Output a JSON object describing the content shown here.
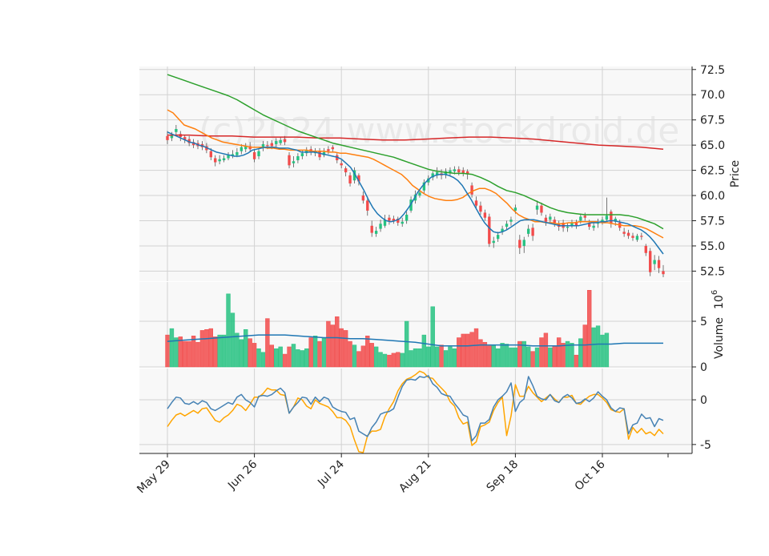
{
  "watermark": "(c)2024 www.stockdroid.de",
  "chart_data": {
    "type": "candlestick-with-volume-and-oscillator",
    "ylabel_price": "Price",
    "ylabel_volume": "Volume",
    "volume_exponent": "10",
    "volume_exponent_power": "6",
    "price_ylim": [
      51.5,
      72.8
    ],
    "price_ticks": [
      "52.5",
      "55.0",
      "57.5",
      "60.0",
      "62.5",
      "65.0",
      "67.5",
      "70.0",
      "72.5"
    ],
    "volume_ylim": [
      0,
      9.3
    ],
    "volume_ticks": [
      "0",
      "5"
    ],
    "osc_ylim": [
      -6.0,
      3.5
    ],
    "osc_ticks": [
      "0",
      "-5"
    ],
    "x_labels": [
      "May 29",
      "Jun 26",
      "Jul 24",
      "Aug 21",
      "Sep 18",
      "Oct 16"
    ],
    "x_label_index": [
      0,
      20,
      40,
      60,
      80,
      100
    ],
    "colors": {
      "up": "#26c281",
      "down": "#f24b4b",
      "ma_blue": "#1f77b4",
      "ma_orange": "#ff7f0e",
      "ma_green": "#2ca02c",
      "ma_red": "#d62728",
      "vol_ma": "#1f77b4",
      "osc_blue": "#4682b4",
      "osc_orange": "#ffa500"
    },
    "close": [
      65.5,
      66.0,
      66.6,
      65.8,
      65.5,
      65.2,
      65.0,
      64.9,
      64.8,
      64.5,
      63.8,
      63.3,
      63.6,
      63.7,
      64.0,
      64.1,
      64.3,
      64.8,
      64.9,
      64.6,
      63.6,
      64.4,
      65.1,
      64.9,
      64.9,
      65.4,
      65.5,
      65.3,
      63.0,
      63.4,
      63.9,
      64.2,
      64.5,
      64.3,
      64.4,
      63.8,
      64.3,
      64.4,
      64.6,
      63.5,
      63.0,
      62.3,
      61.2,
      62.5,
      61.4,
      59.5,
      58.5,
      56.3,
      56.5,
      57.2,
      57.6,
      57.5,
      57.5,
      57.3,
      57.4,
      58.1,
      59.6,
      60.1,
      60.3,
      61.3,
      61.7,
      62.2,
      62.3,
      62.0,
      62.4,
      62.5,
      62.6,
      62.3,
      62.2,
      62.1,
      60.1,
      59.0,
      58.4,
      57.8,
      55.2,
      55.5,
      56.1,
      56.7,
      57.2,
      57.6,
      58.8,
      54.8,
      55.6,
      56.7,
      56.0,
      59.0,
      58.3,
      57.4,
      57.9,
      57.3,
      56.9,
      56.8,
      56.9,
      57.3,
      57.0,
      57.9,
      57.8,
      56.9,
      57.0,
      57.4,
      57.6,
      58.0,
      57.2,
      57.7,
      56.8,
      56.2,
      56.0,
      55.8,
      56.0,
      55.9,
      54.3,
      52.4,
      53.6,
      52.8,
      52.2
    ],
    "open": [
      65.9,
      65.7,
      66.3,
      66.1,
      65.8,
      65.6,
      65.3,
      65.2,
      65.1,
      64.9,
      64.4,
      63.7,
      63.4,
      63.5,
      63.7,
      63.9,
      64.0,
      64.4,
      64.6,
      64.9,
      64.3,
      63.9,
      64.7,
      65.0,
      65.2,
      65.1,
      65.2,
      65.6,
      64.0,
      63.2,
      63.5,
      63.9,
      64.2,
      64.6,
      64.2,
      64.4,
      64.0,
      64.6,
      64.8,
      64.0,
      63.2,
      62.7,
      62.0,
      61.5,
      62.0,
      60.0,
      59.5,
      57.0,
      56.2,
      56.7,
      57.0,
      57.8,
      57.7,
      57.7,
      57.2,
      57.5,
      58.5,
      59.5,
      60.0,
      60.5,
      61.3,
      61.8,
      62.0,
      62.2,
      62.1,
      62.2,
      62.4,
      62.6,
      62.5,
      62.4,
      61.0,
      59.5,
      59.0,
      58.3,
      57.9,
      55.3,
      55.7,
      56.4,
      56.9,
      57.4,
      58.5,
      55.6,
      55.0,
      56.2,
      56.8,
      58.6,
      59.0,
      57.8,
      57.6,
      57.6,
      57.2,
      57.3,
      56.8,
      57.0,
      57.3,
      57.5,
      58.0,
      57.3,
      56.8,
      57.2,
      57.3,
      57.6,
      58.4,
      57.4,
      57.3,
      56.4,
      56.3,
      56.0,
      55.6,
      56.0,
      55.0,
      54.5,
      53.2,
      53.6,
      52.5
    ],
    "high": [
      66.4,
      66.3,
      67.0,
      66.4,
      66.0,
      65.9,
      65.6,
      65.5,
      65.4,
      65.2,
      64.7,
      64.0,
      64.0,
      64.0,
      64.3,
      64.5,
      64.7,
      65.1,
      65.2,
      65.3,
      64.6,
      64.7,
      65.4,
      65.4,
      65.5,
      65.7,
      65.8,
      65.9,
      64.3,
      63.9,
      64.2,
      64.5,
      64.8,
      64.9,
      64.7,
      64.7,
      64.7,
      64.9,
      65.0,
      64.2,
      63.5,
      62.9,
      62.3,
      62.8,
      62.2,
      60.4,
      59.9,
      57.5,
      56.9,
      57.6,
      58.1,
      58.1,
      58.0,
      57.9,
      57.8,
      58.4,
      59.9,
      60.5,
      60.6,
      61.6,
      62.0,
      62.4,
      62.8,
      62.6,
      62.7,
      62.8,
      62.9,
      62.9,
      62.8,
      62.6,
      61.3,
      59.9,
      59.4,
      58.6,
      58.2,
      55.9,
      56.4,
      57.0,
      57.5,
      57.9,
      59.1,
      56.1,
      55.9,
      57.1,
      57.2,
      59.5,
      59.3,
      58.1,
      58.2,
      57.9,
      57.5,
      57.6,
      57.3,
      57.6,
      57.6,
      58.2,
      58.3,
      57.6,
      57.3,
      57.7,
      57.9,
      59.8,
      58.6,
      57.9,
      57.6,
      56.8,
      56.6,
      56.3,
      56.2,
      56.3,
      55.2,
      54.8,
      54.1,
      54.0,
      53.1
    ],
    "low": [
      65.1,
      65.4,
      66.0,
      65.4,
      65.2,
      64.9,
      64.7,
      64.6,
      64.5,
      64.2,
      63.5,
      62.9,
      63.1,
      63.3,
      63.5,
      63.7,
      63.8,
      64.1,
      64.3,
      64.3,
      63.3,
      63.6,
      64.4,
      64.6,
      64.6,
      64.8,
      65.0,
      65.0,
      62.7,
      62.8,
      63.2,
      63.6,
      63.9,
      64.0,
      63.9,
      63.5,
      63.8,
      64.1,
      64.3,
      63.2,
      62.7,
      61.9,
      60.9,
      61.2,
      61.0,
      59.2,
      58.0,
      55.9,
      55.9,
      56.4,
      56.8,
      57.1,
      57.2,
      57.0,
      56.9,
      57.2,
      58.3,
      59.2,
      59.8,
      60.2,
      61.0,
      61.5,
      61.7,
      61.6,
      61.7,
      61.9,
      62.1,
      62.0,
      61.9,
      61.6,
      59.8,
      58.6,
      58.1,
      57.5,
      54.9,
      54.8,
      55.4,
      56.1,
      56.6,
      57.0,
      58.2,
      54.2,
      54.3,
      55.9,
      55.5,
      58.1,
      58.0,
      57.0,
      57.2,
      56.9,
      56.5,
      56.4,
      56.4,
      56.8,
      56.7,
      57.2,
      57.5,
      56.6,
      56.5,
      56.8,
      57.1,
      57.5,
      56.8,
      57.0,
      56.5,
      55.9,
      55.7,
      55.5,
      55.4,
      55.6,
      54.0,
      52.0,
      52.6,
      52.3,
      51.9
    ],
    "volume": [
      3.5,
      4.2,
      3.2,
      3.3,
      2.8,
      2.8,
      3.4,
      2.7,
      4.0,
      4.1,
      4.2,
      3.3,
      3.5,
      3.5,
      8.0,
      5.9,
      3.7,
      3.0,
      4.1,
      3.1,
      2.6,
      2.0,
      1.6,
      5.3,
      2.4,
      2.0,
      2.2,
      1.4,
      2.2,
      2.5,
      1.9,
      1.8,
      2.0,
      3.2,
      3.4,
      2.8,
      3.2,
      5.0,
      4.6,
      5.5,
      4.2,
      4.0,
      2.8,
      2.4,
      1.7,
      2.3,
      3.4,
      2.6,
      2.2,
      1.6,
      1.4,
      1.3,
      1.5,
      1.6,
      1.5,
      5.0,
      1.8,
      2.0,
      2.0,
      3.5,
      2.2,
      6.6,
      2.2,
      2.4,
      1.8,
      2.2,
      2.0,
      3.2,
      3.6,
      3.6,
      3.8,
      4.2,
      3.0,
      2.7,
      2.3,
      2.4,
      2.0,
      2.6,
      2.5,
      2.1,
      2.1,
      2.8,
      2.8,
      2.2,
      1.7,
      2.1,
      3.2,
      3.7,
      2.1,
      2.3,
      3.2,
      2.6,
      2.8,
      2.6,
      1.3,
      3.1,
      4.6,
      8.4,
      4.3,
      4.5,
      3.5,
      3.7,
      0.0,
      0.0,
      0.0,
      0.0,
      0.0,
      0.0,
      0.0,
      0.0,
      0.0,
      0.0,
      0.0,
      0.0,
      0.0
    ],
    "osc_a": [
      -1.0,
      -0.3,
      0.3,
      0.2,
      -0.4,
      -0.5,
      -0.2,
      -0.5,
      -0.1,
      -0.3,
      -1.0,
      -1.2,
      -0.9,
      -0.6,
      -0.3,
      -0.5,
      0.3,
      0.6,
      0.0,
      -0.3,
      -0.8,
      0.4,
      0.5,
      0.4,
      0.6,
      1.0,
      1.3,
      0.8,
      -1.5,
      -0.8,
      -0.3,
      0.3,
      0.2,
      -0.5,
      0.3,
      -0.2,
      0.3,
      0.1,
      -0.8,
      -1.1,
      -1.3,
      -1.4,
      -2.2,
      -2.0,
      -3.5,
      -3.8,
      -4.1,
      -3.1,
      -2.5,
      -1.6,
      -1.4,
      -1.3,
      -1.0,
      0.3,
      1.5,
      2.2,
      2.3,
      2.2,
      2.6,
      2.5,
      2.7,
      1.8,
      1.4,
      0.7,
      0.5,
      0.4,
      -0.4,
      -1.0,
      -1.7,
      -1.9,
      -4.6,
      -4.0,
      -2.6,
      -2.6,
      -2.2,
      -0.8,
      0.0,
      0.4,
      0.9,
      1.9,
      -1.3,
      -0.3,
      0.1,
      2.6,
      1.6,
      0.4,
      0.1,
      0.0,
      0.6,
      -0.1,
      -0.3,
      0.3,
      0.6,
      0.2,
      -0.4,
      -0.3,
      0.1,
      -0.2,
      0.2,
      0.9,
      0.4,
      0.0,
      -0.9,
      -1.3,
      -0.9,
      -1.0,
      -3.8,
      -2.8,
      -2.6,
      -1.6,
      -2.1,
      -2.0,
      -3.0,
      -2.1,
      -2.3
    ],
    "osc_b": [
      -3.0,
      -2.3,
      -1.7,
      -1.5,
      -1.8,
      -1.5,
      -1.2,
      -1.5,
      -1.0,
      -0.9,
      -1.6,
      -2.3,
      -2.5,
      -2.0,
      -1.7,
      -1.2,
      -0.5,
      -0.7,
      -1.2,
      -0.5,
      0.3,
      0.3,
      0.7,
      1.3,
      1.1,
      1.1,
      0.6,
      0.5,
      -1.5,
      -0.8,
      0.2,
      0.0,
      -0.7,
      -1.0,
      0.0,
      -0.4,
      -0.6,
      -0.8,
      -1.3,
      -2.0,
      -2.0,
      -2.3,
      -3.0,
      -4.5,
      -5.8,
      -5.9,
      -4.0,
      -3.5,
      -3.5,
      -3.3,
      -1.9,
      -1.0,
      -0.2,
      1.0,
      1.8,
      2.3,
      2.5,
      2.8,
      3.2,
      3.0,
      2.5,
      2.4,
      1.8,
      1.3,
      0.8,
      -0.2,
      -0.7,
      -2.0,
      -2.7,
      -2.5,
      -5.1,
      -4.7,
      -3.0,
      -2.8,
      -2.5,
      -1.2,
      -0.3,
      0.3,
      -4.0,
      -1.8,
      1.7,
      0.4,
      0.4,
      1.5,
      0.8,
      0.3,
      -0.2,
      0.2,
      0.6,
      0.1,
      -0.3,
      0.3,
      0.3,
      0.5,
      -0.4,
      -0.5,
      0.0,
      0.4,
      0.6,
      0.6,
      0.2,
      -0.3,
      -1.1,
      -1.3,
      -1.4,
      -1.0,
      -4.4,
      -3.1,
      -3.7,
      -3.2,
      -3.8,
      -3.6,
      -4.0,
      -3.3,
      -3.8
    ],
    "ma_blue": [
      66.3,
      66.1,
      65.9,
      65.7,
      65.5,
      65.3,
      65.2,
      65.0,
      64.9,
      64.7,
      64.5,
      64.3,
      64.2,
      64.1,
      64.0,
      63.9,
      63.9,
      64.0,
      64.2,
      64.5,
      64.6,
      64.7,
      64.8,
      64.8,
      64.8,
      64.7,
      64.7,
      64.7,
      64.6,
      64.5,
      64.3,
      64.3,
      64.3,
      64.3,
      64.2,
      64.1,
      64.0,
      63.9,
      63.8,
      63.6,
      63.2,
      62.8,
      62.1,
      61.3,
      60.5,
      59.6,
      58.8,
      58.2,
      57.8,
      57.5,
      57.4,
      57.5,
      57.7,
      58.2,
      58.8,
      59.5,
      60.3,
      60.9,
      61.4,
      61.8,
      62.0,
      62.1,
      62.1,
      62.0,
      61.8,
      61.5,
      61.0,
      60.3,
      59.6,
      58.8,
      58.0,
      57.3,
      56.8,
      56.4,
      56.3,
      56.4,
      56.6,
      56.9,
      57.2,
      57.5,
      57.6,
      57.6,
      57.6,
      57.5,
      57.4,
      57.3,
      57.2,
      57.1,
      57.0,
      57.0,
      57.0,
      57.0,
      57.0,
      57.1,
      57.2,
      57.3,
      57.3,
      57.4,
      57.4,
      57.5,
      57.5,
      57.4,
      57.3,
      57.2,
      57.0,
      56.8,
      56.6,
      56.3,
      55.9,
      55.4,
      54.8,
      54.2
    ],
    "ma_orange": [
      68.5,
      68.2,
      67.6,
      67.0,
      66.8,
      66.6,
      66.3,
      66.0,
      65.7,
      65.5,
      65.3,
      65.2,
      65.1,
      65.0,
      64.9,
      64.8,
      64.8,
      64.8,
      64.7,
      64.7,
      64.6,
      64.6,
      64.5,
      64.5,
      64.5,
      64.5,
      64.4,
      64.4,
      64.4,
      64.3,
      64.3,
      64.2,
      64.2,
      64.1,
      64.0,
      63.9,
      63.8,
      63.6,
      63.3,
      63.0,
      62.7,
      62.4,
      62.1,
      61.6,
      61.0,
      60.6,
      60.2,
      59.9,
      59.7,
      59.6,
      59.5,
      59.5,
      59.6,
      59.8,
      60.2,
      60.5,
      60.7,
      60.7,
      60.5,
      60.2,
      59.7,
      59.2,
      58.6,
      58.1,
      57.8,
      57.6,
      57.4,
      57.4,
      57.3,
      57.3,
      57.2,
      57.2,
      57.3,
      57.3,
      57.4,
      57.4,
      57.4,
      57.4,
      57.3,
      57.3,
      57.2,
      57.1,
      57.0,
      57.0,
      57.0,
      56.9,
      56.7,
      56.4,
      56.1,
      55.8
    ],
    "ma_green": [
      72.0,
      71.7,
      71.4,
      71.1,
      70.8,
      70.5,
      70.2,
      69.9,
      69.5,
      69.0,
      68.5,
      68.0,
      67.6,
      67.2,
      66.8,
      66.4,
      66.1,
      65.8,
      65.5,
      65.2,
      65.0,
      64.8,
      64.6,
      64.4,
      64.2,
      64.0,
      63.8,
      63.5,
      63.2,
      62.9,
      62.6,
      62.4,
      62.3,
      62.2,
      62.2,
      62.1,
      61.8,
      61.4,
      60.9,
      60.5,
      60.3,
      60.0,
      59.6,
      59.2,
      58.8,
      58.5,
      58.3,
      58.2,
      58.1,
      58.1,
      58.1,
      58.1,
      58.1,
      58.0,
      57.8,
      57.5,
      57.2,
      56.7
    ],
    "ma_red": [
      66.0,
      66.0,
      65.9,
      65.9,
      65.8,
      65.8,
      65.8,
      65.7,
      65.7,
      65.6,
      65.5,
      65.5,
      65.6,
      65.7,
      65.8,
      65.8,
      65.7,
      65.6,
      65.4,
      65.2,
      65.0,
      64.9,
      64.8,
      64.6
    ],
    "vol_ma": [
      2.8,
      2.9,
      3.0,
      3.1,
      3.2,
      3.3,
      3.4,
      3.5,
      3.5,
      3.5,
      3.4,
      3.3,
      3.2,
      3.2,
      3.1,
      3.1,
      3.0,
      2.9,
      2.8,
      2.7,
      2.5,
      2.3,
      2.3,
      2.3,
      2.4,
      2.4,
      2.4,
      2.4,
      2.3,
      2.3,
      2.3,
      2.4,
      2.4,
      2.5,
      2.5,
      2.6,
      2.6,
      2.6,
      2.6
    ]
  }
}
